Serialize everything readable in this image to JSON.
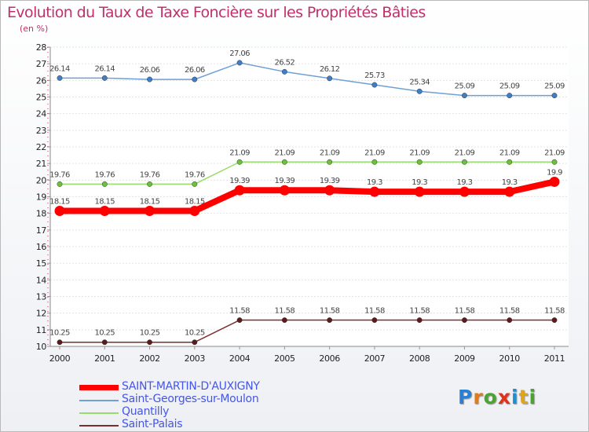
{
  "title": "Evolution du Taux de Taxe Foncière sur les Propriétés Bâties",
  "unit": "(en %)",
  "logo": {
    "text": "Proxiti",
    "colors": [
      "#2a7fd4",
      "#e07a1b",
      "#4aa52e",
      "#e0331b",
      "#1b8fd4",
      "#e0a41b",
      "#4aa52e"
    ]
  },
  "chart_data": {
    "type": "line",
    "title": "Evolution du Taux de Taxe Foncière sur les Propriétés Bâties",
    "ylabel": "(en %)",
    "ylim": [
      10,
      28
    ],
    "yticks": [
      10,
      11,
      12,
      13,
      14,
      15,
      16,
      17,
      18,
      19,
      20,
      21,
      22,
      23,
      24,
      25,
      26,
      27,
      28
    ],
    "categories": [
      "2000",
      "2001",
      "2002",
      "2003",
      "2004",
      "2005",
      "2006",
      "2007",
      "2008",
      "2009",
      "2010",
      "2011"
    ],
    "series": [
      {
        "name": "SAINT-MARTIN-D'AUXIGNY",
        "color": "#ff0000",
        "bold": true,
        "values": [
          18.15,
          18.15,
          18.15,
          18.15,
          19.39,
          19.39,
          19.39,
          19.3,
          19.3,
          19.3,
          19.3,
          19.9
        ],
        "labels": [
          "18.15",
          "18.15",
          "18.15",
          "18.15",
          "19.39",
          "19.39",
          "19.39",
          "19.3",
          "19.3",
          "19.3",
          "19.3",
          "19.9"
        ]
      },
      {
        "name": "Saint-Georges-sur-Moulon",
        "color": "#6e9fd6",
        "marker": "#3d7fc9",
        "values": [
          26.14,
          26.14,
          26.06,
          26.06,
          27.06,
          26.52,
          26.12,
          25.73,
          25.34,
          25.09,
          25.09,
          25.09
        ],
        "labels": [
          "26.14",
          "26.14",
          "26.06",
          "26.06",
          "27.06",
          "26.52",
          "26.12",
          "25.73",
          "25.34",
          "25.09",
          "25.09",
          "25.09"
        ]
      },
      {
        "name": "Quantilly",
        "color": "#98dc6e",
        "marker": "#6cc03d",
        "values": [
          19.76,
          19.76,
          19.76,
          19.76,
          21.09,
          21.09,
          21.09,
          21.09,
          21.09,
          21.09,
          21.09,
          21.09
        ],
        "labels": [
          "19.76",
          "19.76",
          "19.76",
          "19.76",
          "21.09",
          "21.09",
          "21.09",
          "21.09",
          "21.09",
          "21.09",
          "21.09",
          "21.09"
        ]
      },
      {
        "name": "Saint-Palais",
        "color": "#7a2f2f",
        "marker": "#5e1a1a",
        "values": [
          10.25,
          10.25,
          10.25,
          10.25,
          11.58,
          11.58,
          11.58,
          11.58,
          11.58,
          11.58,
          11.58,
          11.58
        ],
        "labels": [
          "10.25",
          "10.25",
          "10.25",
          "10.25",
          "11.58",
          "11.58",
          "11.58",
          "11.58",
          "11.58",
          "11.58",
          "11.58",
          "11.58"
        ]
      }
    ]
  }
}
